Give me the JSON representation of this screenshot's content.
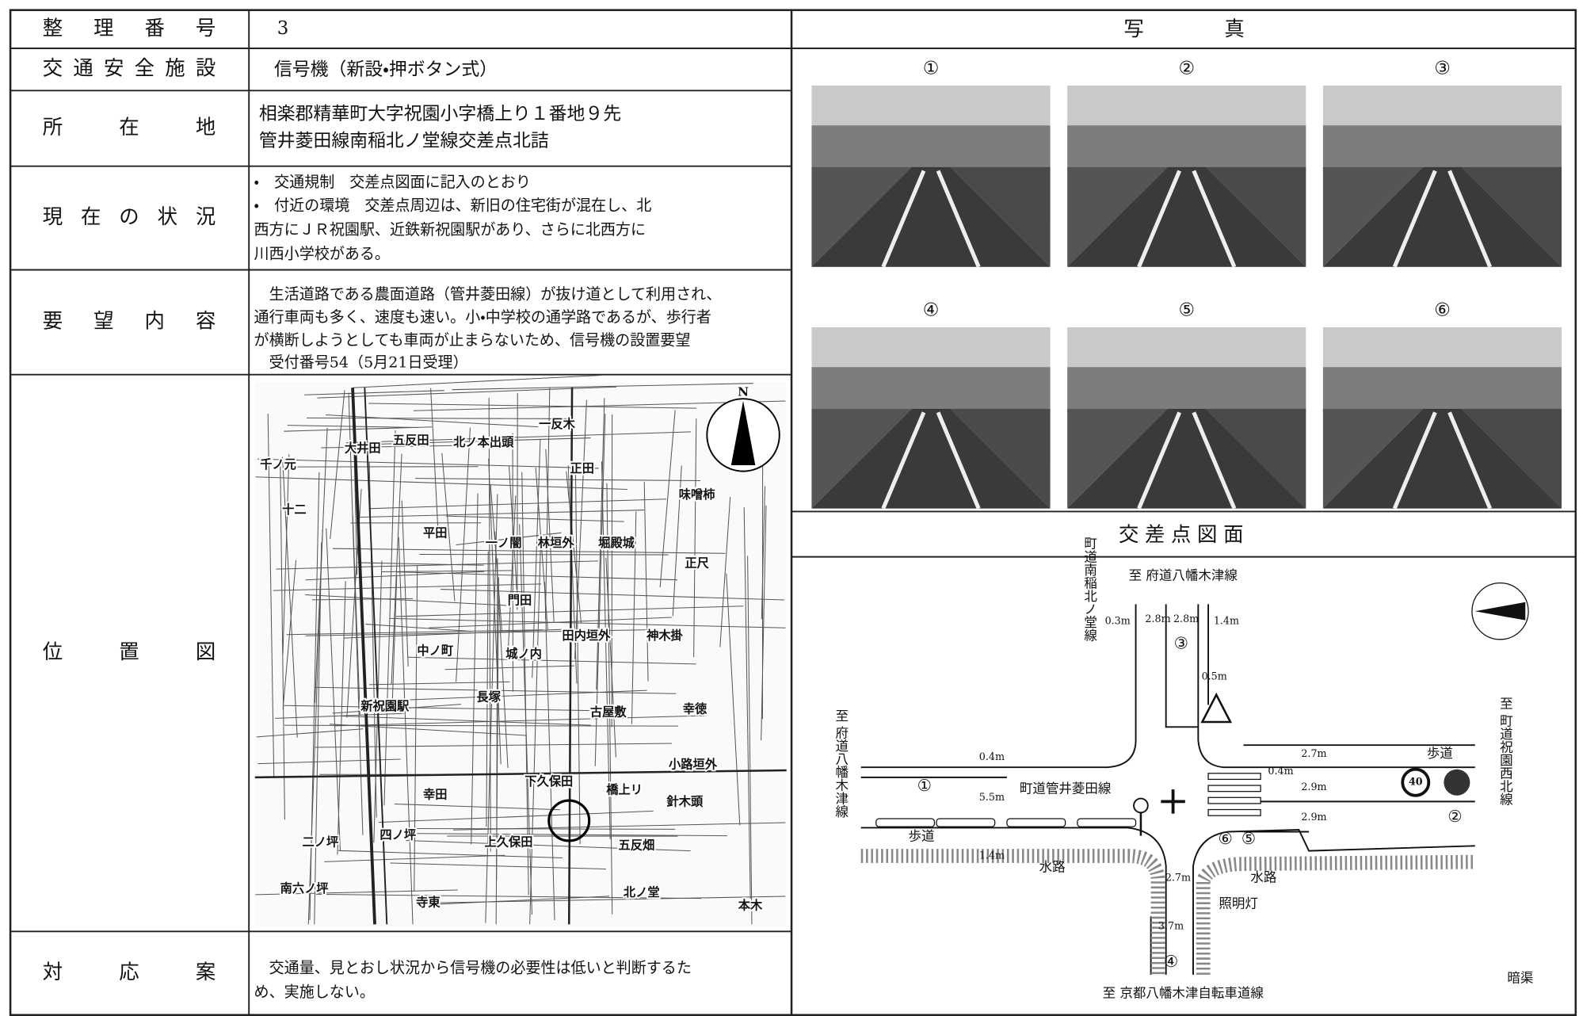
{
  "table": {
    "rows": [
      {
        "label": "整理番号",
        "lines": [
          "3"
        ]
      },
      {
        "label": "交通安全施設",
        "lines": [
          "信号機（新設・押ボタン式）"
        ]
      },
      {
        "label": "所在地",
        "lines": [
          "相楽郡精華町大字祝園小字橋上り１番地９先",
          "管井菱田線南稲北ノ堂線交差点北詰"
        ]
      },
      {
        "label": "現在の状況",
        "lines": [
          "・　交通規制　交差点図面に記入のとおり",
          "・　付近の環境　交差点周辺は、新旧の住宅街が混在し、北",
          "西方にＪＲ祝園駅、近鉄新祝園駅があり、さらに北西方に",
          "川西小学校がある。"
        ]
      },
      {
        "label": "要望内容",
        "lines": [
          "　生活道路である農面道路（管井菱田線）が抜け道として利用され、",
          "通行車両も多く、速度も速い。小・中学校の通学路であるが、歩行者",
          "が横断しようとしても車両が止まらないため、信号機の設置要望",
          "　受付番号54（5月21日受理）"
        ]
      },
      {
        "label": "位置図"
      },
      {
        "label": "対応案",
        "lines": [
          "　交通量、見とおし状況から信号機の必要性は低いと判断するた",
          "め、実施しない。"
        ]
      }
    ]
  },
  "location_map": {
    "labels": [
      "N",
      "一反木",
      "五反田",
      "北ノ本出頭",
      "大井田",
      "千ノ元",
      "正田",
      "味噌柿",
      "十二",
      "平田",
      "一ノ闇",
      "林垣外",
      "堀殿城",
      "正尺",
      "門田",
      "田内垣外",
      "神木掛",
      "中ノ町",
      "城ノ内",
      "長塚",
      "古屋敷",
      "幸徳",
      "新祝園駅",
      "小路垣外",
      "幸田",
      "下久保田",
      "橋上リ",
      "針木頭",
      "上久保田",
      "五反畑",
      "二ノ坪",
      "四ノ坪",
      "南六ノ坪",
      "寺東",
      "北ノ堂",
      "本木"
    ]
  },
  "photos": {
    "title": "写　　　　真",
    "labels": [
      "①",
      "②",
      "③",
      "④",
      "⑤",
      "⑥"
    ]
  },
  "diagram": {
    "title": "交差点図面",
    "labels": [
      "至 府道八幡木津線",
      "町道南稲北ノ堂線",
      "0.3m",
      "2.8m",
      "2.8m",
      "1.4m",
      "0.5m",
      "0.4m",
      "5.5m",
      "町道管井菱田線",
      "1.4m",
      "2.7m",
      "3.7m",
      "至 京都八幡木津自転車道線",
      "至 府道八幡木津線",
      "至 町道祝園西北線",
      "歩道",
      "2.7m",
      "0.4m",
      "2.9m",
      "2.9m",
      "40",
      "水路",
      "水路",
      "照明灯",
      "歩道",
      "暗渠"
    ],
    "markers": [
      "①",
      "②",
      "③",
      "④",
      "⑤",
      "⑥"
    ]
  }
}
